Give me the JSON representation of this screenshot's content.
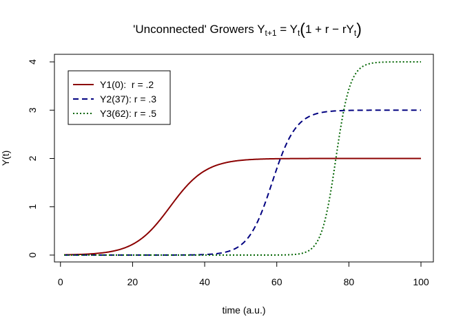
{
  "chart_data": {
    "type": "line",
    "title": {
      "main": "'Unconnected' Growers ",
      "formula": [
        {
          "t": "Y"
        },
        {
          "t": "t+1",
          "sub": true
        },
        {
          "t": " = Y"
        },
        {
          "t": "t",
          "sub": true
        },
        {
          "t": "(",
          "paren": true
        },
        {
          "t": "1 + r − rY"
        },
        {
          "t": "t",
          "sub": true
        },
        {
          "t": ")",
          "paren": true
        }
      ]
    },
    "xlabel": "time (a.u.)",
    "ylabel": "Y(t)",
    "xlim": [
      1,
      100
    ],
    "ylim": [
      0,
      4
    ],
    "xticks": [
      0,
      20,
      40,
      60,
      80,
      100
    ],
    "yticks": [
      0,
      1,
      2,
      3,
      4
    ],
    "grid": false,
    "legend_position": "top-left",
    "series": [
      {
        "name": "Y1(0):  r = .2",
        "color": "#8B0000",
        "dash": "solid",
        "model": {
          "r": 0.2,
          "K": 2,
          "midpoint": 30.4
        }
      },
      {
        "name": "Y2(37): r = .3",
        "color": "#000080",
        "dash": "dashed",
        "model": {
          "r": 0.3,
          "K": 3,
          "midpoint": 58.7
        }
      },
      {
        "name": "Y3(62): r = .5",
        "color": "#006400",
        "dash": "dotted",
        "model": {
          "r": 0.5,
          "K": 4,
          "midpoint": 76.4
        }
      }
    ]
  }
}
